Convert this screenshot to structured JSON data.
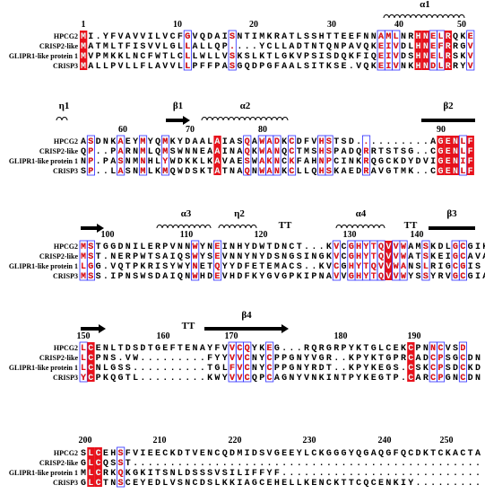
{
  "names": [
    "HPCG2",
    "CRISP2-like",
    "GLIPR1-like protein 1",
    "CRISP3"
  ],
  "blocks": [
    {
      "ruler": [
        "1",
        "10",
        "20",
        "30",
        "40",
        "50"
      ],
      "structure": [
        {
          "label": "α1",
          "kind": "helix"
        }
      ],
      "sequences": [
        "MI.YFVAVVILVCFGVQDAISNTIMKRATLSSHTTEEFNNAMLNRHNELRQKE",
        "MATMLTFISVVLGLLALLQP....YCLLADTNTQNPAVQKEIVDLHNEFRRGV",
        "MVPMKKLNCFWTLCLLWLLVSKSLKTLGKVPSISDQKFIQEIVDSHNELRSKV",
        "MALLPVLLFLAVVLLPFFPASGQDPGFAALSITKSE.VQKEIVNKHNDLRRYV"
      ]
    },
    {
      "ruler": [
        "60",
        "70",
        "80",
        "90"
      ],
      "structure": [
        {
          "label": "η1",
          "kind": "helix"
        },
        {
          "label": "β1",
          "kind": "strand"
        },
        {
          "label": "α2",
          "kind": "helix"
        },
        {
          "label": "β2",
          "kind": "bar"
        }
      ],
      "sequences": [
        "ASDNKAEYMYQMKYDAALAIASQAWADKCDFVHSTSD..........AGENLF",
        "QP..PARNMLQMSWNNEAAINAQKWANQCTMSHSPADQRRTSTSG..CGENLF",
        "NP.PASNMNHLYWDKKLKAVAESWAKNCKFAHNPCINKRQGCKDYDVIGENIF",
        "SP..LASNMLKMQWDSKTATNAQNWANKCLLQHSKAEDRAVGTMK..CGENLF"
      ]
    },
    {
      "ruler": [
        "100",
        "110",
        "120",
        "130",
        "140"
      ],
      "structure": [
        {
          "kind": "strand"
        },
        {
          "label": "α3",
          "kind": "helix"
        },
        {
          "label": "η2",
          "kind": "helix"
        },
        {
          "label": "TT",
          "kind": "turn"
        },
        {
          "label": "α4",
          "kind": "helix"
        },
        {
          "label": "TT",
          "kind": "turn"
        },
        {
          "label": "β3",
          "kind": "bar"
        }
      ],
      "sequences": [
        "MSTGGDNILERPVNNWYNEINHYDWTDNCT...KVCGHYTQVVWAMSKDLGCGIK",
        "MST.NERPWTSAIQSWYSEVNNYNYDSNGSINGKVCGHYTQVVWATSKEIGCAVA",
        "LGG.VQTPKRISYWYNETQYYDFETEMACS..KVCGHYTQVVWANSLRIGCGIS",
        "MSS.IPNSWSDAIQNWHDEVHDFKYGVGPKIPNAVVGHYTQVVWYSSYRVGCGIA"
      ]
    },
    {
      "ruler": [
        "150",
        "160",
        "170",
        "180",
        "190"
      ],
      "structure": [
        {
          "kind": "strand"
        },
        {
          "label": "TT",
          "kind": "turn"
        },
        {
          "label": "β4",
          "kind": "strand"
        }
      ],
      "sequences": [
        "LCENLTDSDTGEFTENAYFVVCQYKEG...RQRGRPYKTGLCEKCPNNCVSD",
        "LCPNS.VW.........FYYVVCNYCPPGNYVGR..KPYKTGPRCADCPSGCDN",
        "LCNLGSS..........TGLFVCNYCPPGNYRDT..KPYKEGS.CSKCPSDCKD",
        "YCPKQGTL.........KWYVVCQPCAGNYVNKINTPYKEGTP.CARCPGNCDN"
      ]
    },
    {
      "ruler": [
        "200",
        "210",
        "220",
        "230",
        "240",
        "250"
      ],
      "structure": [],
      "sequences": [
        "SLCEHSFVIEECKDTVENCQDMIDSVGEEYLCKGGGYQGAQGFQCDKTCKACTA",
        "GLCQSST...............................................",
        "MLCRKQKGKITSNLDSSSVSILIFFYF...........................",
        "GLCTNSCEYEDLVSNCDSLKKIAGCEHELLKENCKTTCQCENKIY........."
      ]
    }
  ]
}
